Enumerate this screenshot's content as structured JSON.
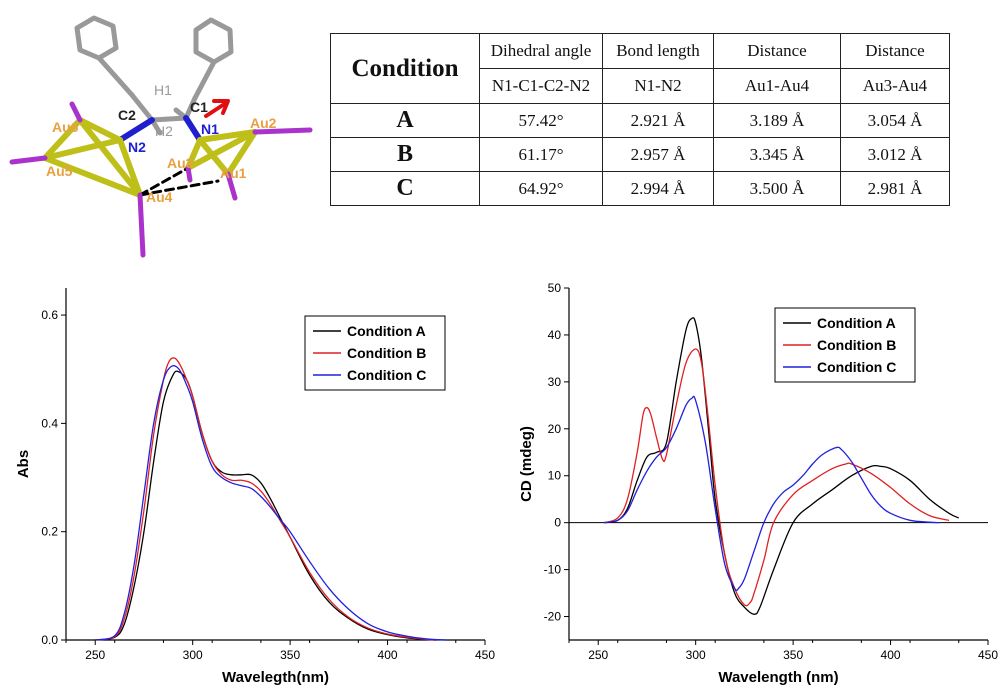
{
  "molecule": {
    "labels": [
      "H1",
      "C2",
      "C1",
      "H2",
      "N1",
      "N2",
      "Au1",
      "Au2",
      "Au3",
      "Au4",
      "Au5",
      "Au6"
    ]
  },
  "table": {
    "corner": "Condition",
    "headers": [
      {
        "line1": "Dihedral angle",
        "line2": "N1-C1-C2-N2"
      },
      {
        "line1": "Bond length",
        "line2": "N1-N2"
      },
      {
        "line1": "Distance",
        "line2": "Au1-Au4"
      },
      {
        "line1": "Distance",
        "line2": "Au3-Au4"
      }
    ],
    "rows": [
      {
        "label": "A",
        "cells": [
          "57.42°",
          "2.921 Å",
          "3.189 Å",
          "3.054 Å"
        ]
      },
      {
        "label": "B",
        "cells": [
          "61.17°",
          "2.957 Å",
          "3.345 Å",
          "3.012 Å"
        ]
      },
      {
        "label": "C",
        "cells": [
          "64.92°",
          "2.994 Å",
          "3.500 Å",
          "2.981 Å"
        ]
      }
    ]
  },
  "chart_data": [
    {
      "type": "line",
      "title": "",
      "xlabel": "Wavelegth(nm)",
      "ylabel": "Abs",
      "xlim": [
        235,
        450
      ],
      "ylim": [
        0,
        0.65
      ],
      "xticks": [
        250,
        300,
        350,
        400,
        450
      ],
      "yticks": [
        0.0,
        0.2,
        0.4,
        0.6
      ],
      "xtick_labels": [
        "250",
        "300",
        "350",
        "400",
        "450"
      ],
      "ytick_labels": [
        "0.0",
        "0.2",
        "0.4",
        "0.6"
      ],
      "legend": "top-right",
      "grid": false,
      "series": [
        {
          "name": "Condition A",
          "color": "#000000",
          "x": [
            250,
            260,
            265,
            270,
            275,
            280,
            285,
            290,
            293,
            297,
            300,
            305,
            310,
            315,
            320,
            325,
            330,
            335,
            340,
            345,
            350,
            360,
            370,
            380,
            390,
            400,
            410,
            420,
            425
          ],
          "y": [
            0,
            0.005,
            0.03,
            0.1,
            0.2,
            0.33,
            0.44,
            0.49,
            0.495,
            0.48,
            0.45,
            0.38,
            0.33,
            0.31,
            0.305,
            0.305,
            0.305,
            0.29,
            0.26,
            0.225,
            0.19,
            0.12,
            0.07,
            0.04,
            0.02,
            0.01,
            0.004,
            0.001,
            0
          ]
        },
        {
          "name": "Condition B",
          "color": "#e02020",
          "x": [
            250,
            260,
            265,
            270,
            275,
            280,
            285,
            288,
            291,
            294,
            297,
            300,
            305,
            310,
            315,
            320,
            325,
            330,
            335,
            340,
            345,
            350,
            360,
            370,
            380,
            390,
            400,
            410,
            420,
            425
          ],
          "y": [
            0,
            0.006,
            0.04,
            0.12,
            0.24,
            0.38,
            0.48,
            0.515,
            0.52,
            0.505,
            0.48,
            0.45,
            0.38,
            0.33,
            0.305,
            0.295,
            0.295,
            0.29,
            0.275,
            0.25,
            0.22,
            0.19,
            0.125,
            0.075,
            0.042,
            0.022,
            0.011,
            0.005,
            0.001,
            0
          ]
        },
        {
          "name": "Condition C",
          "color": "#2020e0",
          "x": [
            250,
            260,
            265,
            270,
            275,
            280,
            285,
            289,
            293,
            297,
            300,
            305,
            310,
            315,
            320,
            325,
            330,
            335,
            340,
            345,
            350,
            360,
            370,
            380,
            390,
            400,
            410,
            420,
            430
          ],
          "y": [
            0,
            0.008,
            0.05,
            0.14,
            0.27,
            0.4,
            0.48,
            0.505,
            0.5,
            0.47,
            0.44,
            0.37,
            0.32,
            0.3,
            0.29,
            0.285,
            0.28,
            0.265,
            0.245,
            0.222,
            0.2,
            0.145,
            0.095,
            0.057,
            0.03,
            0.015,
            0.007,
            0.002,
            0
          ]
        }
      ]
    },
    {
      "type": "line",
      "title": "",
      "xlabel": "Wavelength (nm)",
      "ylabel": "CD (mdeg)",
      "xlim": [
        235,
        450
      ],
      "ylim": [
        -25,
        50
      ],
      "xticks": [
        250,
        300,
        350,
        400,
        450
      ],
      "yticks": [
        -20,
        -10,
        0,
        10,
        20,
        30,
        40,
        50
      ],
      "xtick_labels": [
        "250",
        "300",
        "350",
        "400",
        "450"
      ],
      "ytick_labels": [
        "-20",
        "-10",
        "0",
        "10",
        "20",
        "30",
        "40",
        "50"
      ],
      "legend": "top-right",
      "grid": false,
      "zero_line": true,
      "series": [
        {
          "name": "Condition A",
          "color": "#000000",
          "x": [
            253,
            260,
            265,
            270,
            275,
            280,
            285,
            290,
            295,
            298,
            300,
            303,
            307,
            310,
            315,
            320,
            325,
            330,
            333,
            340,
            350,
            360,
            370,
            380,
            390,
            395,
            400,
            410,
            420,
            430,
            435
          ],
          "y": [
            0,
            0.5,
            3,
            9,
            14,
            15,
            17,
            30,
            41,
            43.5,
            42.5,
            35,
            18,
            5,
            -7,
            -15,
            -18,
            -19.5,
            -18,
            -10,
            0,
            4,
            7,
            10,
            12,
            12,
            11.5,
            9,
            5,
            2,
            1
          ]
        },
        {
          "name": "Condition B",
          "color": "#e02020",
          "x": [
            253,
            260,
            265,
            270,
            273,
            275,
            277,
            280,
            283,
            285,
            290,
            295,
            300,
            303,
            306,
            310,
            315,
            320,
            325,
            328,
            330,
            335,
            340,
            350,
            360,
            370,
            377,
            380,
            390,
            400,
            410,
            420,
            430
          ],
          "y": [
            0,
            1,
            5,
            15,
            23,
            24.5,
            23,
            18,
            13.5,
            14.5,
            25,
            34,
            37,
            34,
            24,
            8,
            -7,
            -14,
            -17.5,
            -17,
            -15,
            -8,
            0,
            6,
            9,
            11.5,
            12.5,
            12.5,
            10.5,
            7.5,
            4,
            1.5,
            0.5
          ]
        },
        {
          "name": "Condition C",
          "color": "#2020e0",
          "x": [
            253,
            260,
            265,
            270,
            275,
            280,
            285,
            290,
            295,
            298,
            300,
            305,
            310,
            315,
            320,
            322,
            325,
            330,
            335,
            340,
            345,
            350,
            355,
            360,
            365,
            372,
            375,
            380,
            385,
            390,
            395,
            400,
            410,
            420,
            425
          ],
          "y": [
            0,
            0.5,
            2.5,
            7,
            11,
            14,
            16,
            20,
            25,
            26.5,
            26,
            17,
            3,
            -9,
            -14,
            -14,
            -12,
            -6,
            0,
            4,
            6.5,
            8,
            10,
            12.5,
            14.5,
            16,
            15.5,
            13,
            9.5,
            6,
            3.5,
            2,
            0.5,
            0.1,
            0
          ]
        }
      ]
    }
  ]
}
